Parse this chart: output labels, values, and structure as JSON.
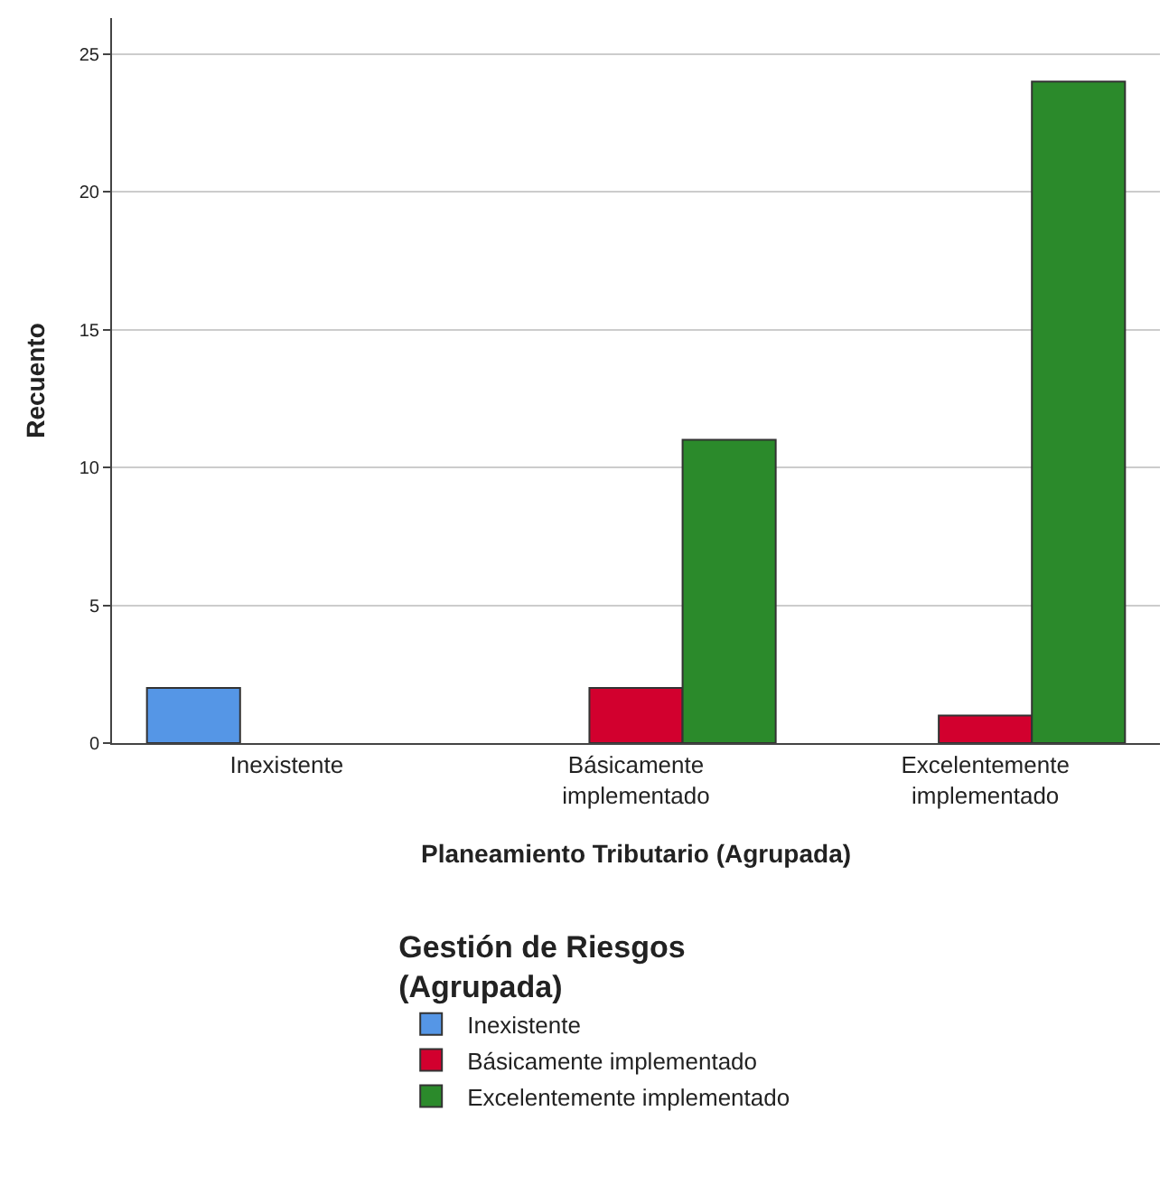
{
  "chart_data": {
    "type": "bar",
    "xlabel": "Planeamiento Tributario (Agrupada)",
    "ylabel": "Recuento",
    "categories": [
      "Inexistente",
      "Básicamente\nimplementado",
      "Excelentemente\nimplementado"
    ],
    "series": [
      {
        "name": "Inexistente",
        "color": "#5596e6",
        "values": [
          2,
          null,
          null
        ]
      },
      {
        "name": "Básicamente implementado",
        "color": "#d2002e",
        "values": [
          null,
          2,
          1
        ]
      },
      {
        "name": "Excelentemente implementado",
        "color": "#2b8a2b",
        "values": [
          null,
          11,
          24
        ]
      }
    ],
    "legend_title": "Gestión de Riesgos\n(Agrupada)",
    "ylim": [
      0,
      26.3
    ],
    "yticks": [
      0,
      5,
      10,
      15,
      20,
      25
    ],
    "grid": "y",
    "legend": "bottom"
  }
}
